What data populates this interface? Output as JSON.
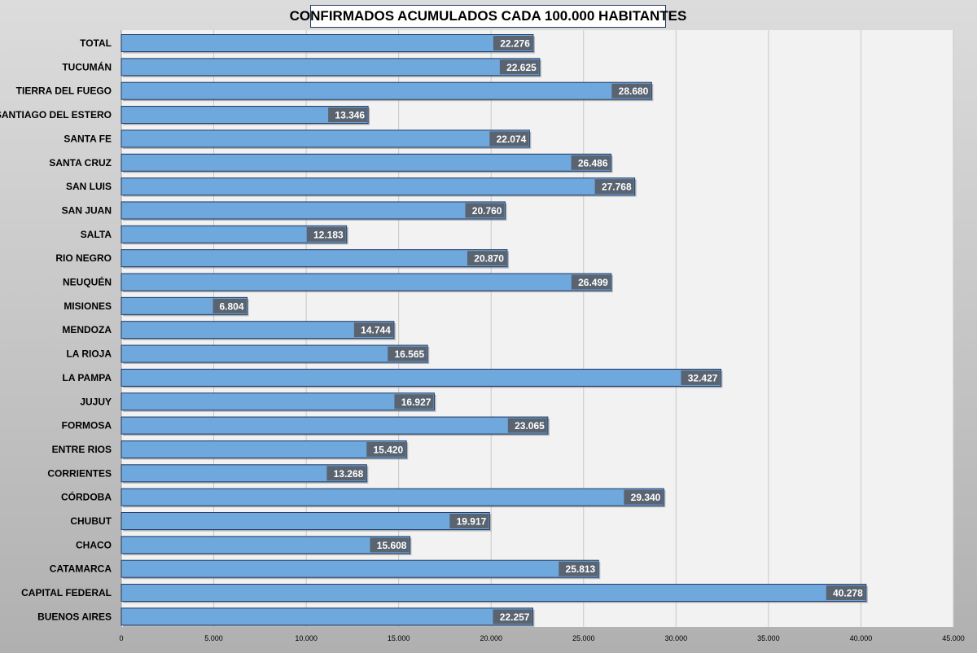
{
  "chart_data": {
    "type": "bar",
    "orientation": "horizontal",
    "title": "CONFIRMADOS ACUMULADOS CADA 100.000 HABITANTES",
    "categories": [
      "TOTAL",
      "TUCUMÁN",
      "TIERRA DEL FUEGO",
      "SANTIAGO DEL ESTERO",
      "SANTA FE",
      "SANTA CRUZ",
      "SAN LUIS",
      "SAN JUAN",
      "SALTA",
      "RIO NEGRO",
      "NEUQUÉN",
      "MISIONES",
      "MENDOZA",
      "LA RIOJA",
      "LA PAMPA",
      "JUJUY",
      "FORMOSA",
      "ENTRE RIOS",
      "CORRIENTES",
      "CÓRDOBA",
      "CHUBUT",
      "CHACO",
      "CATAMARCA",
      "CAPITAL FEDERAL",
      "BUENOS AIRES"
    ],
    "values": [
      22276,
      22625,
      28680,
      13346,
      22074,
      26486,
      27768,
      20760,
      12183,
      20870,
      26499,
      6804,
      14744,
      16565,
      32427,
      16927,
      23065,
      15420,
      13268,
      29340,
      19917,
      15608,
      25813,
      40278,
      22257
    ],
    "value_labels": [
      "22.276",
      "22.625",
      "28.680",
      "13.346",
      "22.074",
      "26.486",
      "27.768",
      "20.760",
      "12.183",
      "20.870",
      "26.499",
      "6.804",
      "14.744",
      "16.565",
      "32.427",
      "16.927",
      "23.065",
      "15.420",
      "13.268",
      "29.340",
      "19.917",
      "15.608",
      "25.813",
      "40.278",
      "22.257"
    ],
    "x_ticks": [
      0,
      5000,
      10000,
      15000,
      20000,
      25000,
      30000,
      35000,
      40000,
      45000
    ],
    "x_tick_labels": [
      "0",
      "5.000",
      "10.000",
      "15.000",
      "20.000",
      "25.000",
      "30.000",
      "35.000",
      "40.000",
      "45.000"
    ],
    "xlim": [
      0,
      45000
    ],
    "xlabel": "",
    "ylabel": "",
    "grid": true,
    "legend": "none",
    "colors": {
      "bar_fill": "#6fa8dc",
      "bar_stroke": "#1f3864",
      "label_bg": "#5a6470",
      "plot_bg": "#f2f2f2",
      "gridline": "#c8c8c8"
    }
  }
}
